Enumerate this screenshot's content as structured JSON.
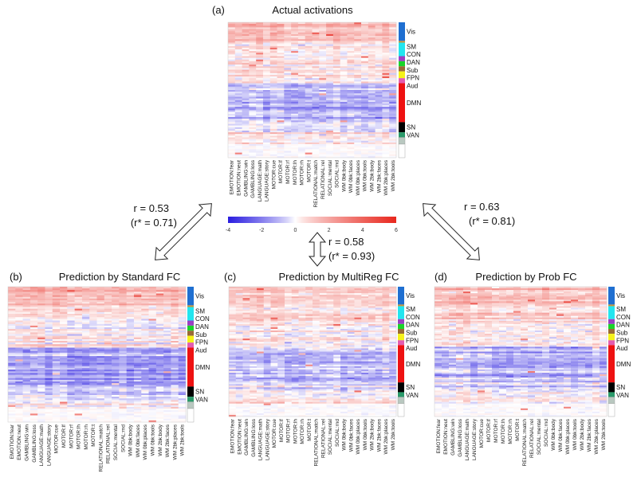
{
  "chart_data": [
    {
      "type": "heatmap",
      "panel": "(a)",
      "title": "Actual activations",
      "network_means": [
        1.2,
        0.8,
        0.6,
        0.3,
        0.5,
        0.2,
        0.4,
        0.3,
        -1.0,
        -0.4,
        0.1,
        0.2,
        0.0
      ]
    },
    {
      "type": "heatmap",
      "panel": "(b)",
      "title": "Prediction by Standard FC",
      "network_means": [
        1.4,
        0.8,
        0.5,
        0.3,
        0.3,
        0.2,
        0.3,
        0.2,
        -1.3,
        -0.6,
        0.0,
        0.1,
        0.0
      ]
    },
    {
      "type": "heatmap",
      "panel": "(c)",
      "title": "Prediction by MultiReg FC",
      "network_means": [
        1.1,
        0.9,
        0.6,
        0.3,
        0.4,
        0.2,
        0.4,
        0.3,
        -0.9,
        -0.4,
        0.1,
        0.2,
        0.0
      ]
    },
    {
      "type": "heatmap",
      "panel": "(d)",
      "title": "Prediction by Prob FC",
      "network_means": [
        1.3,
        0.8,
        0.6,
        0.3,
        0.4,
        0.2,
        0.4,
        0.3,
        -1.0,
        -0.5,
        0.1,
        0.2,
        0.0
      ]
    }
  ],
  "tasks": [
    "EMOTION:fear",
    "EMOTION:neut",
    "GAMBLING:win",
    "GAMBLING:loss",
    "LANGUAGE:math",
    "LANGUAGE:story",
    "MOTOR:cue",
    "MOTOR:lf",
    "MOTOR:rf",
    "MOTOR:lh",
    "MOTOR:rh",
    "MOTOR:t",
    "RELATIONAL:match",
    "RELATIONAL:rel",
    "SOCIAL:mental",
    "SOCIAL:rnd",
    "WM 0bk:body",
    "WM 0bk:faces",
    "WM 0bk:places",
    "WM 0bk:tools",
    "WM 2bk:body",
    "WM 2bk:faces",
    "WM 2bk:places",
    "WM 2bk:tools"
  ],
  "networks": [
    {
      "label": "Vis",
      "color": "#1f6fd1"
    },
    {
      "label": "",
      "color": "#c8953a"
    },
    {
      "label": "SM",
      "color": "#22e5ef"
    },
    {
      "label": "CON",
      "color": "#9b3fc4"
    },
    {
      "label": "DAN",
      "color": "#19d42a"
    },
    {
      "label": "Sub",
      "color": "#9a6a35"
    },
    {
      "label": "FPN",
      "color": "#f5f21a"
    },
    {
      "label": "Aud",
      "color": "#e35db0"
    },
    {
      "label": "DMN",
      "color": "#ee1111"
    },
    {
      "label": "SN",
      "color": "#000000"
    },
    {
      "label": "VAN",
      "color": "#2a9a6a"
    },
    {
      "label": "",
      "color": "#b9c8c0"
    },
    {
      "label": "",
      "color": "#ffffff"
    }
  ],
  "colorbar": {
    "min": -4,
    "max": 6,
    "ticks": [
      "-4",
      "-2",
      "0",
      "2",
      "4",
      "6"
    ],
    "low_color": "#2a1de0",
    "mid_color": "#ffffff",
    "high_color": "#e8281e"
  },
  "comparisons": {
    "a_vs_b": {
      "r": "r = 0.53",
      "r_star": "(r* = 0.71)"
    },
    "b_vs_c": {
      "r": "r = 0.58",
      "r_star": "(r* = 0.93)"
    },
    "a_vs_d": {
      "r": "r = 0.63",
      "r_star": "(r* = 0.81)"
    }
  }
}
